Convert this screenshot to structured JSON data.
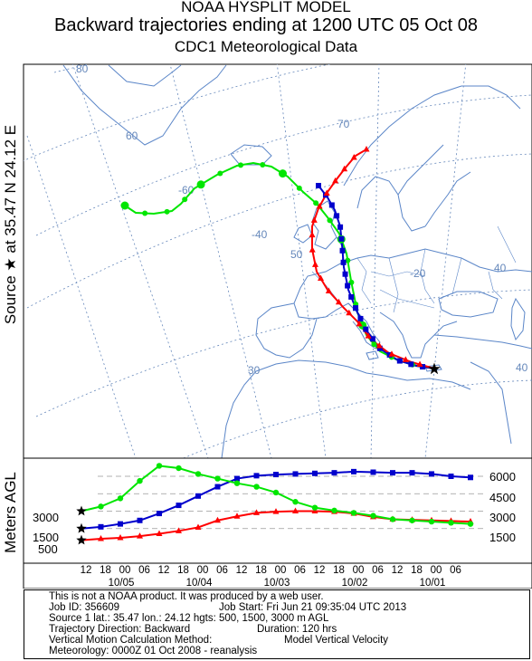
{
  "header": {
    "line1": "NOAA HYSPLIT MODEL",
    "line2": "Backward trajectories ending at 1200 UTC 05 Oct 08",
    "line3": "CDC1 Meteorological Data"
  },
  "source_label": "Source ★ at   35.47 N   24.12 E",
  "agl_label": "Meters AGL",
  "colors": {
    "t500": "#ff0000",
    "t1500": "#0000cc",
    "t3000": "#00e600",
    "map_lines": "#5b86c8",
    "grid": "#6688bb"
  },
  "map": {
    "lat_labels": [
      "80",
      "70",
      "60",
      "50",
      "40",
      "30"
    ],
    "lon_labels": [
      "-60",
      "-40",
      "-20",
      "40"
    ],
    "source_marker": "star-icon"
  },
  "chart_data": {
    "type": "line",
    "title": "",
    "x_tick_labels": [
      "06",
      "00",
      "18",
      "12",
      "06",
      "00",
      "18",
      "12",
      "06",
      "00",
      "18",
      "12",
      "06",
      "00",
      "18",
      "12",
      "06",
      "00",
      "18",
      "12"
    ],
    "x_date_labels": [
      "10/05",
      "10/04",
      "10/03",
      "10/02",
      "10/01"
    ],
    "y_tick_labels_right": [
      "6000",
      "4500",
      "3000",
      "1500"
    ],
    "y_start_labels_left": [
      "3000",
      "1500",
      "500"
    ],
    "ylabel": "Meters AGL",
    "series": [
      {
        "name": "500",
        "color": "#ff0000",
        "hours_back": [
          0,
          6,
          12,
          18,
          24,
          30,
          36,
          42,
          48,
          54,
          60,
          66,
          72,
          78,
          84,
          90,
          96,
          102,
          108,
          114,
          120
        ],
        "height_m": [
          500,
          620,
          700,
          850,
          1050,
          1300,
          1600,
          2200,
          2550,
          2850,
          2950,
          3000,
          3000,
          2950,
          2800,
          2500,
          2300,
          2250,
          2200,
          2150,
          2100
        ]
      },
      {
        "name": "1500",
        "color": "#0000cc",
        "hours_back": [
          0,
          6,
          12,
          18,
          24,
          30,
          36,
          42,
          48,
          54,
          60,
          66,
          72,
          78,
          84,
          90,
          96,
          102,
          108,
          114,
          120
        ],
        "height_m": [
          1500,
          1650,
          1900,
          2200,
          2800,
          3500,
          4300,
          5100,
          5800,
          6050,
          6150,
          6200,
          6250,
          6300,
          6400,
          6350,
          6300,
          6300,
          6200,
          6000,
          5900
        ]
      },
      {
        "name": "3000",
        "color": "#00e600",
        "hours_back": [
          0,
          6,
          12,
          18,
          24,
          30,
          36,
          42,
          48,
          54,
          60,
          66,
          72,
          78,
          84,
          90,
          96,
          102,
          108,
          114,
          120
        ],
        "height_m": [
          3000,
          3400,
          4100,
          5600,
          6900,
          6700,
          6200,
          5800,
          5400,
          5100,
          4600,
          3800,
          3300,
          3050,
          2850,
          2600,
          2300,
          2200,
          2100,
          2000,
          1900
        ]
      }
    ]
  },
  "info": {
    "l1": "This is not a NOAA product. It was produced by a web user.",
    "l2a": "Job ID: 356609",
    "l2b": "Job Start: Fri Jun 21 09:35:04 UTC 2013",
    "l3a": "Source 1 lat.: 35.47  lon.: 24.12  hgts: 500, 1500, 3000 m AGL",
    "l4a": "Trajectory Direction: Backward",
    "l4b": "Duration: 120 hrs",
    "l5a": "Vertical Motion Calculation Method:",
    "l5b": "Model Vertical Velocity",
    "l6a": "Meteorology: 0000Z 01 Oct 2008 - reanalysis"
  }
}
